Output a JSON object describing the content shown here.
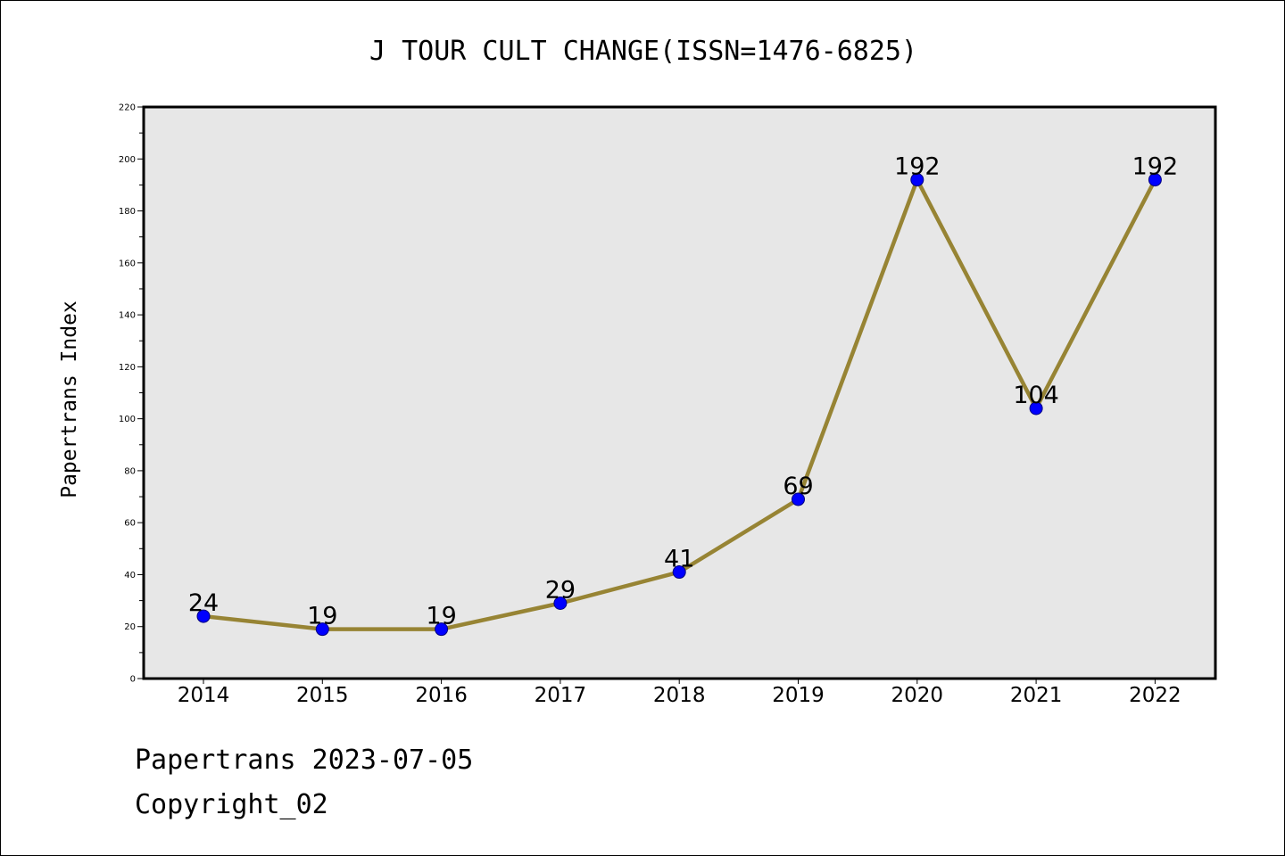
{
  "chart_data": {
    "type": "line",
    "title": "J TOUR CULT CHANGE(ISSN=1476-6825)",
    "xlabel": "",
    "ylabel": "Papertrans Index",
    "categories": [
      "2014",
      "2015",
      "2016",
      "2017",
      "2018",
      "2019",
      "2020",
      "2021",
      "2022"
    ],
    "series": [
      {
        "values": [
          24,
          19,
          19,
          29,
          41,
          69,
          192,
          104,
          192
        ]
      }
    ],
    "data_labels": [
      "24",
      "19",
      "19",
      "29",
      "41",
      "69",
      "192",
      "104",
      "192"
    ],
    "ylim": [
      0,
      220
    ],
    "yticks": [
      "0",
      "20",
      "40",
      "60",
      "80",
      "100",
      "120",
      "140",
      "160",
      "180",
      "200",
      "220"
    ],
    "grid": false,
    "legend": "none",
    "colors": {
      "line": "#978434",
      "marker_fill": "#0000ff",
      "marker_stroke": "#000080",
      "plot_background": "#e7e7e7",
      "axis": "#000000"
    }
  },
  "footer": {
    "line1": "Papertrans 2023-07-05",
    "line2": "Copyright_02"
  }
}
